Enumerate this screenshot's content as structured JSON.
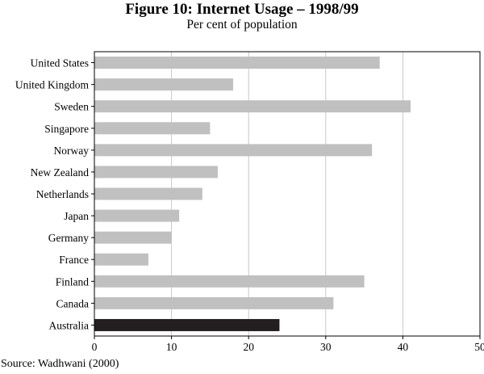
{
  "figure": {
    "title": "Figure 10: Internet Usage – 1998/99",
    "subtitle": "Per cent of population",
    "source": "Source: Wadhwani (2000)"
  },
  "colors": {
    "bar": "#c0c0c0",
    "highlight": "#231f20",
    "grid": "#c8c8c8",
    "frame": "#000000"
  },
  "chart_data": {
    "type": "bar",
    "orientation": "horizontal",
    "title": "Figure 10: Internet Usage – 1998/99",
    "subtitle": "Per cent of population",
    "categories": [
      "United States",
      "United Kingdom",
      "Sweden",
      "Singapore",
      "Norway",
      "New Zealand",
      "Netherlands",
      "Japan",
      "Germany",
      "France",
      "Finland",
      "Canada",
      "Australia"
    ],
    "values": [
      37,
      18,
      41,
      15,
      36,
      16,
      14,
      11,
      10,
      7,
      35,
      31,
      24
    ],
    "highlighted": [
      "Australia"
    ],
    "xlim": [
      0,
      50
    ],
    "xticks": [
      0,
      10,
      20,
      30,
      40,
      50
    ],
    "xlabel": "",
    "ylabel": "",
    "grid": true,
    "legend": false
  }
}
